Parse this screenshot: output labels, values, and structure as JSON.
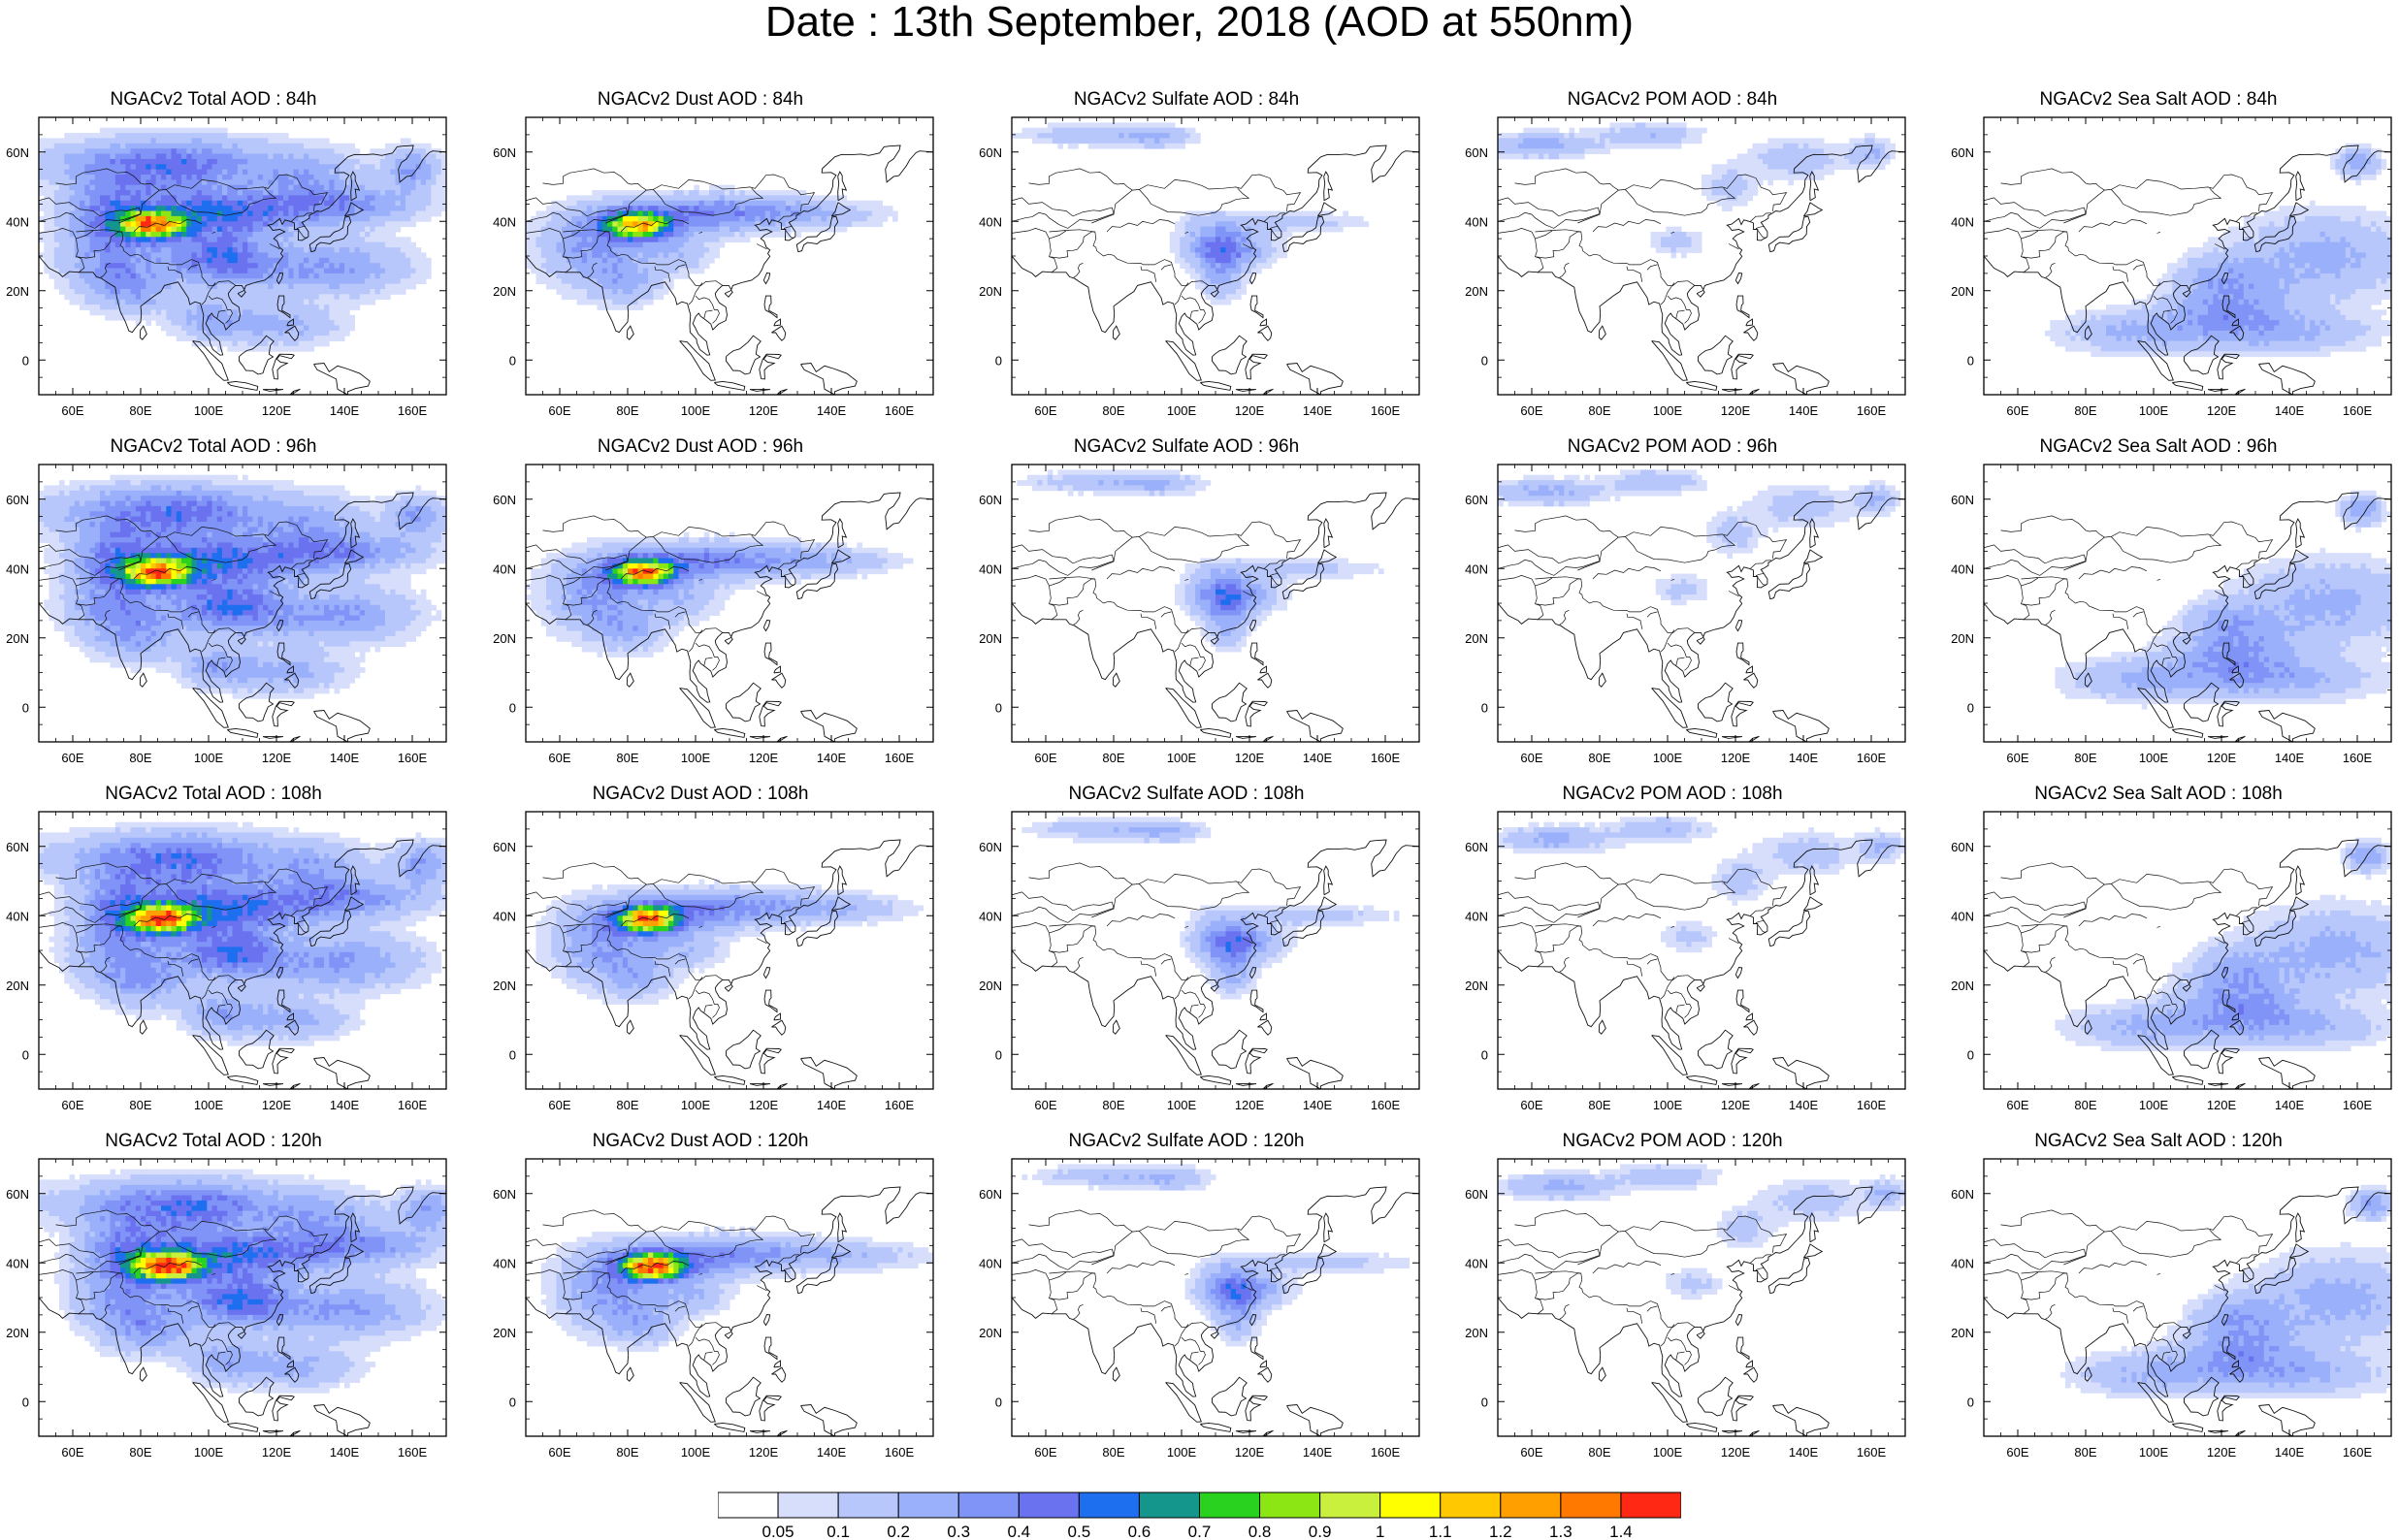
{
  "title": "Date : 13th September, 2018 (AOD at 550nm)",
  "lon_ticks": [
    "60E",
    "80E",
    "100E",
    "120E",
    "140E",
    "160E"
  ],
  "lat_ticks": [
    "60N",
    "40N",
    "20N",
    "0"
  ],
  "rows": [
    {
      "hour": "84h",
      "panels": [
        {
          "species": "total",
          "title": "NGACv2 Total AOD : 84h"
        },
        {
          "species": "dust",
          "title": "NGACv2 Dust AOD : 84h"
        },
        {
          "species": "sulfate",
          "title": "NGACv2 Sulfate AOD : 84h"
        },
        {
          "species": "pom",
          "title": "NGACv2 POM AOD : 84h"
        },
        {
          "species": "seasalt",
          "title": "NGACv2 Sea Salt AOD : 84h"
        }
      ]
    },
    {
      "hour": "96h",
      "panels": [
        {
          "species": "total",
          "title": "NGACv2 Total AOD : 96h"
        },
        {
          "species": "dust",
          "title": "NGACv2 Dust AOD : 96h"
        },
        {
          "species": "sulfate",
          "title": "NGACv2 Sulfate AOD : 96h"
        },
        {
          "species": "pom",
          "title": "NGACv2 POM AOD : 96h"
        },
        {
          "species": "seasalt",
          "title": "NGACv2 Sea Salt AOD : 96h"
        }
      ]
    },
    {
      "hour": "108h",
      "panels": [
        {
          "species": "total",
          "title": "NGACv2 Total AOD : 108h"
        },
        {
          "species": "dust",
          "title": "NGACv2 Dust AOD : 108h"
        },
        {
          "species": "sulfate",
          "title": "NGACv2 Sulfate AOD : 108h"
        },
        {
          "species": "pom",
          "title": "NGACv2 POM AOD : 108h"
        },
        {
          "species": "seasalt",
          "title": "NGACv2 Sea Salt AOD : 108h"
        }
      ]
    },
    {
      "hour": "120h",
      "panels": [
        {
          "species": "total",
          "title": "NGACv2 Total AOD : 120h"
        },
        {
          "species": "dust",
          "title": "NGACv2 Dust AOD : 120h"
        },
        {
          "species": "sulfate",
          "title": "NGACv2 Sulfate AOD : 120h"
        },
        {
          "species": "pom",
          "title": "NGACv2 POM AOD : 120h"
        },
        {
          "species": "seasalt",
          "title": "NGACv2 Sea Salt  AOD : 120h"
        }
      ]
    }
  ],
  "colorbar": {
    "labels": [
      "0.05",
      "0.1",
      "0.2",
      "0.3",
      "0.4",
      "0.5",
      "0.6",
      "0.7",
      "0.8",
      "0.9",
      "1",
      "1.1",
      "1.2",
      "1.3",
      "1.4"
    ],
    "colors": [
      "#ffffff",
      "#d6defc",
      "#b7c7fb",
      "#9bb0fa",
      "#7f94f6",
      "#6a72f0",
      "#1e6ef0",
      "#14968c",
      "#28d21e",
      "#8ce614",
      "#c8f03c",
      "#ffff00",
      "#ffc800",
      "#ffa000",
      "#ff7800",
      "#ff2814"
    ]
  }
}
